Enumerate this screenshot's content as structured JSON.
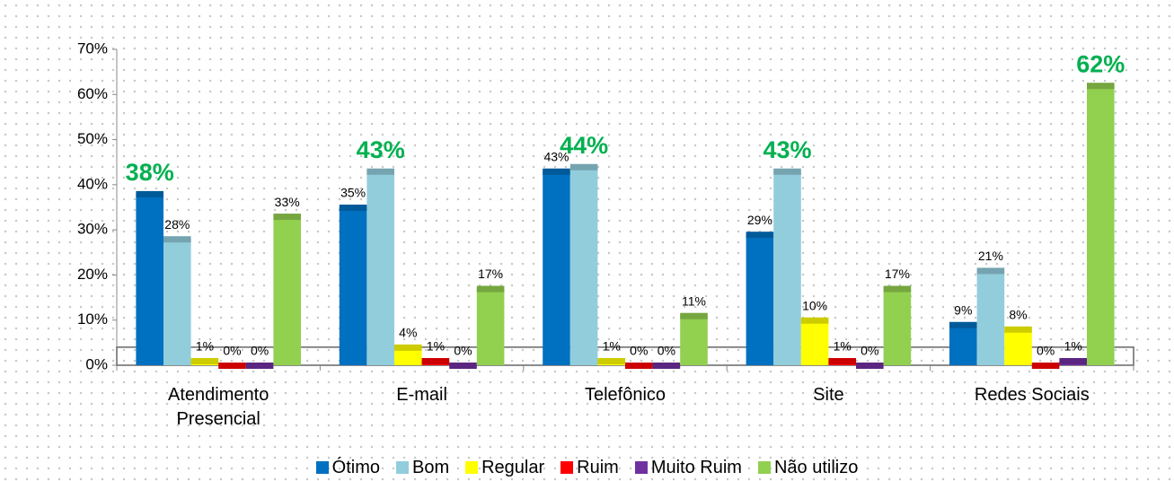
{
  "chart_data": {
    "type": "bar",
    "categories": [
      "Atendimento Presencial",
      "E-mail",
      "Telefônico",
      "Site",
      "Redes Sociais"
    ],
    "series": [
      {
        "name": "Ótimo",
        "color": "#0070c0",
        "values": [
          38,
          35,
          43,
          29,
          9
        ],
        "value_labels": [
          "38%",
          "35%",
          "43%",
          "29%",
          "9%"
        ]
      },
      {
        "name": "Bom",
        "color": "#92cddc",
        "values": [
          28,
          43,
          44,
          43,
          21
        ],
        "value_labels": [
          "28%",
          "43%",
          "44%",
          "43%",
          "21%"
        ]
      },
      {
        "name": "Regular",
        "color": "#ffff00",
        "values": [
          1,
          4,
          1,
          10,
          8
        ],
        "value_labels": [
          "1%",
          "4%",
          "1%",
          "10%",
          "8%"
        ]
      },
      {
        "name": "Ruim",
        "color": "#ff0000",
        "values": [
          0,
          1,
          0,
          1,
          0
        ],
        "value_labels": [
          "0%",
          "1%",
          "0%",
          "1%",
          "0%"
        ]
      },
      {
        "name": "Muito Ruim",
        "color": "#7030a0",
        "values": [
          0,
          0,
          0,
          0,
          1
        ],
        "value_labels": [
          "0%",
          "0%",
          "0%",
          "0%",
          "1%"
        ]
      },
      {
        "name": "Não utilizo",
        "color": "#92d050",
        "values": [
          33,
          17,
          11,
          17,
          62
        ],
        "value_labels": [
          "33%",
          "17%",
          "11%",
          "17%",
          "62%"
        ]
      }
    ],
    "ylim": [
      0,
      70
    ],
    "yticks": [
      {
        "value": 0,
        "label": "0%"
      },
      {
        "value": 10,
        "label": "10%"
      },
      {
        "value": 20,
        "label": "20%"
      },
      {
        "value": 30,
        "label": "30%"
      },
      {
        "value": 40,
        "label": "40%"
      },
      {
        "value": 50,
        "label": "50%"
      },
      {
        "value": 60,
        "label": "60%"
      },
      {
        "value": 70,
        "label": "70%"
      }
    ],
    "grid": false,
    "highlight_color": "#00b050",
    "legend": "bottom"
  }
}
